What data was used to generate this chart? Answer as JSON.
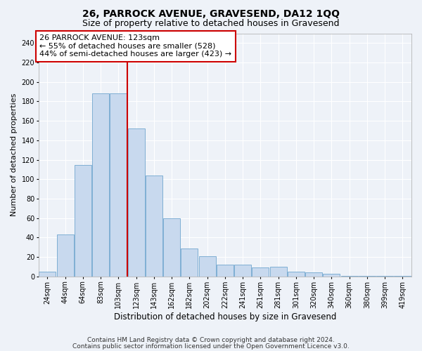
{
  "title1": "26, PARROCK AVENUE, GRAVESEND, DA12 1QQ",
  "title2": "Size of property relative to detached houses in Gravesend",
  "xlabel": "Distribution of detached houses by size in Gravesend",
  "ylabel": "Number of detached properties",
  "categories": [
    "24sqm",
    "44sqm",
    "64sqm",
    "83sqm",
    "103sqm",
    "123sqm",
    "143sqm",
    "162sqm",
    "182sqm",
    "202sqm",
    "222sqm",
    "241sqm",
    "261sqm",
    "281sqm",
    "301sqm",
    "320sqm",
    "340sqm",
    "360sqm",
    "380sqm",
    "399sqm",
    "419sqm"
  ],
  "values": [
    5,
    43,
    115,
    188,
    188,
    152,
    104,
    60,
    29,
    21,
    12,
    12,
    9,
    10,
    5,
    4,
    3,
    1,
    1,
    1,
    1
  ],
  "bar_color": "#c8d9ee",
  "bar_edge_color": "#7fafd4",
  "vline_x_index": 4.5,
  "vline_color": "#cc0000",
  "annotation_line1": "26 PARROCK AVENUE: 123sqm",
  "annotation_line2": "← 55% of detached houses are smaller (528)",
  "annotation_line3": "44% of semi-detached houses are larger (423) →",
  "annotation_box_color": "white",
  "annotation_box_edge_color": "#cc0000",
  "ylim": [
    0,
    250
  ],
  "yticks": [
    0,
    20,
    40,
    60,
    80,
    100,
    120,
    140,
    160,
    180,
    200,
    220,
    240
  ],
  "footer1": "Contains HM Land Registry data © Crown copyright and database right 2024.",
  "footer2": "Contains public sector information licensed under the Open Government Licence v3.0.",
  "bg_color": "#eef2f8",
  "plot_bg_color": "#eef2f8",
  "grid_color": "#ffffff",
  "title1_fontsize": 10,
  "title2_fontsize": 9,
  "xlabel_fontsize": 8.5,
  "ylabel_fontsize": 8,
  "tick_fontsize": 7,
  "annotation_fontsize": 8,
  "footer_fontsize": 6.5
}
